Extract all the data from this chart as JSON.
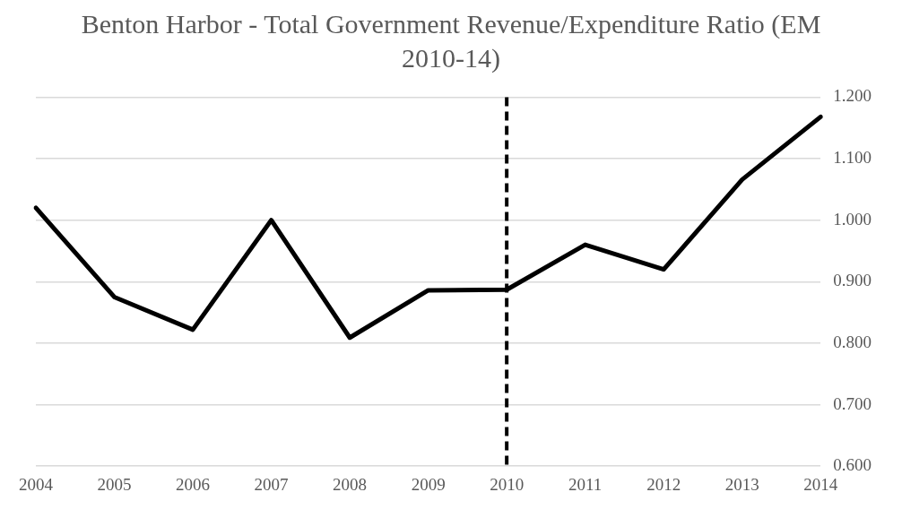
{
  "chart_data": {
    "type": "line",
    "title": "Benton Harbor - Total Government Revenue/Expenditure Ratio (EM 2010-14)",
    "categories": [
      "2004",
      "2005",
      "2006",
      "2007",
      "2008",
      "2009",
      "2010",
      "2011",
      "2012",
      "2013",
      "2014"
    ],
    "series": [
      {
        "color": "#000000",
        "values": [
          1.02,
          0.875,
          0.822,
          1.0,
          0.809,
          0.886,
          0.887,
          0.96,
          0.92,
          1.066,
          1.168
        ]
      }
    ],
    "ylim": [
      0.6,
      1.2
    ],
    "yticks": [
      {
        "value": 0.6,
        "label": "0.600"
      },
      {
        "value": 0.7,
        "label": "0.700"
      },
      {
        "value": 0.8,
        "label": "0.800"
      },
      {
        "value": 0.9,
        "label": "0.900"
      },
      {
        "value": 1.0,
        "label": "1.000"
      },
      {
        "value": 1.1,
        "label": "1.100"
      },
      {
        "value": 1.2,
        "label": "1.200"
      }
    ],
    "ref_lines": [
      {
        "axis": "x",
        "value": "2010",
        "color": "#000000",
        "line_style": "dashed"
      }
    ],
    "grid": "y",
    "marker": "none",
    "line_style": "solid"
  }
}
